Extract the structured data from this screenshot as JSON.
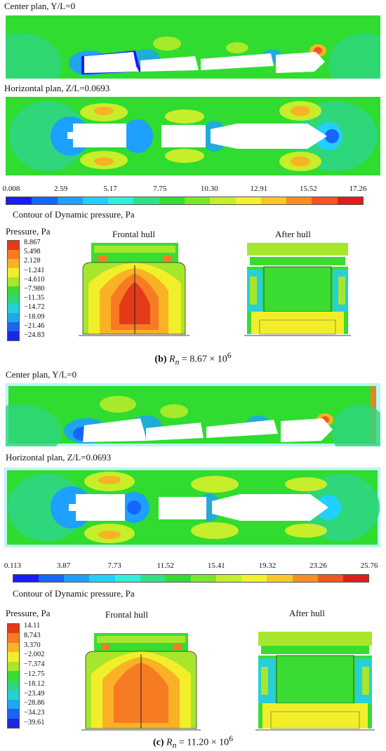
{
  "panel_b": {
    "center_title": "Center plan, Y/L=0",
    "horizontal_title": "Horizontal plan, Z/L=0.0693",
    "colorbar_ticks": [
      "0.008",
      "2.59",
      "5.17",
      "7.75",
      "10.30",
      "12.91",
      "15.52",
      "17.26"
    ],
    "contour_title": "Contour of Dynamic pressure, Pa",
    "pressure_title": "Pressure, Pa",
    "pressure_levels": [
      "8.867",
      "5.498",
      "2.128",
      "−1.241",
      "−4.610",
      "−7.980",
      "−11.35",
      "−14.72",
      "−18.09",
      "−21.46",
      "−24.83"
    ],
    "frontal_hull": "Frontal hull",
    "after_hull": "After hull",
    "caption_letter": "(b)",
    "caption_symbol": "R",
    "caption_sub": "n",
    "caption_value": " = 8.67 × 10",
    "caption_exp": "6"
  },
  "panel_c": {
    "center_title": "Center plan, Y/L=0",
    "horizontal_title": "Horizontal plan, Z/L=0.0693",
    "colorbar_ticks": [
      "0.113",
      "3.87",
      "7.73",
      "11.52",
      "15.41",
      "19.32",
      "23.26",
      "25.76"
    ],
    "contour_title": "Contour of Dynamic pressure, Pa",
    "pressure_title": "Pressure, Pa",
    "pressure_levels": [
      "14.11",
      "8.743",
      "3.370",
      "−2.002",
      "−7.374",
      "−12.75",
      "−18.12",
      "−23.49",
      "−28.86",
      "−34.23",
      "−39.61"
    ],
    "frontal_hull": "Frontal hull",
    "after_hull": "After hull",
    "caption_letter": "(c)",
    "caption_symbol": "R",
    "caption_sub": "n",
    "caption_value": " = 11.20 × 10",
    "caption_exp": "6"
  },
  "colors": {
    "field_green": "#2fdc2f",
    "hull_white": "#ffffff",
    "dynamic_scale": [
      "#1a1aff",
      "#1466ff",
      "#1ea0ff",
      "#22d0ff",
      "#2ff0d8",
      "#2fe08a",
      "#30dd30",
      "#7ae62a",
      "#c6ee2a",
      "#f2f22a",
      "#f8c826",
      "#f88e22",
      "#f25422",
      "#e01c1c"
    ],
    "pressure_scale": [
      "#e43a1a",
      "#f77b22",
      "#f9b126",
      "#f2ef2a",
      "#a6e62c",
      "#3adc32",
      "#2fd682",
      "#27cfd6",
      "#22a6ee",
      "#1e62ee",
      "#1a28e0"
    ]
  }
}
